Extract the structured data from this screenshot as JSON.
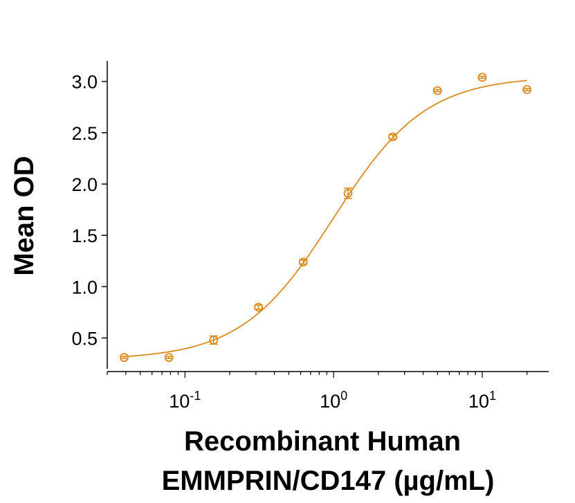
{
  "chart_data": {
    "type": "scatter",
    "title": "",
    "xlabel_line1": "Recombinant Human",
    "xlabel_line2": "EMMPRIN/CD147 (µg/mL)",
    "ylabel": "Mean OD",
    "xscale": "log",
    "xlim": [
      0.03,
      28
    ],
    "ylim": [
      0.2,
      3.2
    ],
    "yticks": [
      "0.5",
      "1.0",
      "1.5",
      "2.0",
      "2.5",
      "3.0"
    ],
    "xticks": [
      {
        "base": "10",
        "exp": "-1"
      },
      {
        "base": "10",
        "exp": "0"
      },
      {
        "base": "10",
        "exp": "1"
      }
    ],
    "grid": false,
    "legend": "none",
    "color": "#d98a1a",
    "series": [
      {
        "x": [
          0.039,
          0.078,
          0.156,
          0.3125,
          0.625,
          1.25,
          2.5,
          5,
          10,
          20
        ],
        "y": [
          0.31,
          0.31,
          0.48,
          0.8,
          1.24,
          1.91,
          2.46,
          2.91,
          3.04,
          2.92
        ],
        "err": [
          0.01,
          0.01,
          0.04,
          0.02,
          0.02,
          0.05,
          0.02,
          0.01,
          0.01,
          0.01
        ]
      }
    ],
    "fit": {
      "type": "4PL",
      "bottom": 0.29,
      "top": 3.05,
      "ec50": 1.0,
      "hill": 1.4
    }
  }
}
